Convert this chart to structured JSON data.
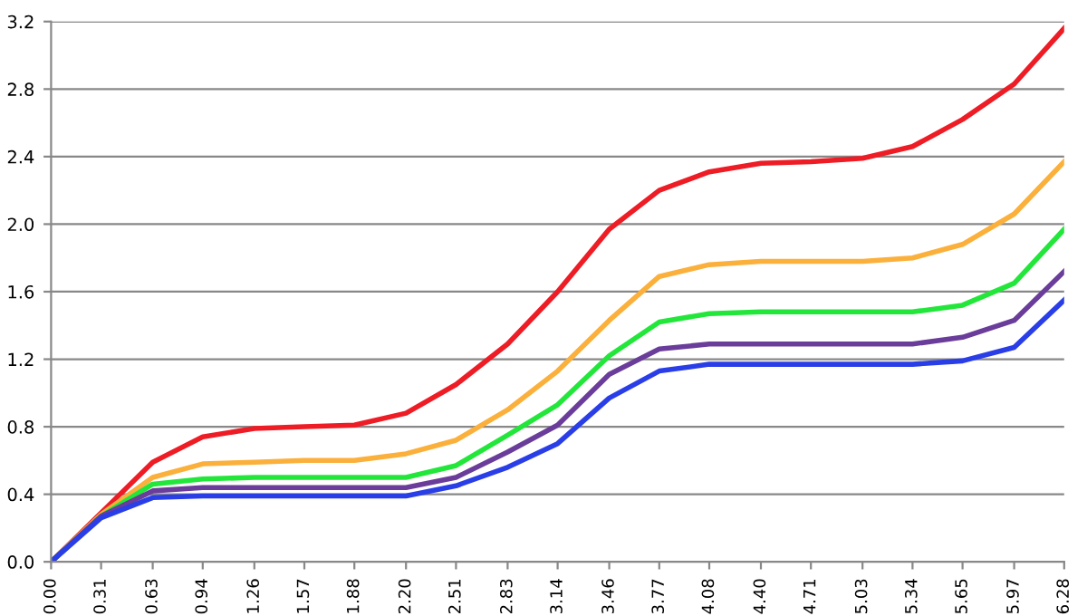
{
  "chart_data": {
    "type": "line",
    "x": [
      0,
      0.31,
      0.63,
      0.94,
      1.26,
      1.57,
      1.88,
      2.2,
      2.51,
      2.83,
      3.14,
      3.46,
      3.77,
      4.08,
      4.4,
      4.71,
      5.03,
      5.34,
      5.65,
      5.97,
      6.28
    ],
    "series": [
      {
        "color": "#ee1c25",
        "values": [
          0,
          0.29,
          0.59,
          0.74,
          0.79,
          0.8,
          0.81,
          0.88,
          1.05,
          1.29,
          1.6,
          1.97,
          2.2,
          2.31,
          2.36,
          2.37,
          2.39,
          2.46,
          2.62,
          2.83,
          3.16
        ]
      },
      {
        "color": "#fbb03b",
        "values": [
          0,
          0.28,
          0.5,
          0.58,
          0.59,
          0.6,
          0.6,
          0.64,
          0.72,
          0.9,
          1.13,
          1.43,
          1.69,
          1.76,
          1.78,
          1.78,
          1.78,
          1.8,
          1.88,
          2.06,
          2.37
        ]
      },
      {
        "color": "#22e63a",
        "values": [
          0,
          0.27,
          0.46,
          0.49,
          0.5,
          0.5,
          0.5,
          0.5,
          0.57,
          0.75,
          0.93,
          1.22,
          1.42,
          1.47,
          1.48,
          1.48,
          1.48,
          1.48,
          1.52,
          1.65,
          1.97
        ]
      },
      {
        "color": "#6a3d9a",
        "values": [
          0,
          0.27,
          0.42,
          0.44,
          0.44,
          0.44,
          0.44,
          0.44,
          0.5,
          0.65,
          0.81,
          1.11,
          1.26,
          1.29,
          1.29,
          1.29,
          1.29,
          1.29,
          1.33,
          1.43,
          1.72
        ]
      },
      {
        "color": "#2a3ee8",
        "values": [
          0,
          0.26,
          0.38,
          0.39,
          0.39,
          0.39,
          0.39,
          0.39,
          0.45,
          0.56,
          0.7,
          0.97,
          1.13,
          1.17,
          1.17,
          1.17,
          1.17,
          1.17,
          1.19,
          1.27,
          1.55
        ]
      }
    ],
    "xlim": [
      0,
      6.28
    ],
    "ylim": [
      0,
      3.2
    ],
    "xticks": [
      {
        "value": 0,
        "label": "0.00"
      },
      {
        "value": 0.31,
        "label": "0.31"
      },
      {
        "value": 0.63,
        "label": "0.63"
      },
      {
        "value": 0.94,
        "label": "0.94"
      },
      {
        "value": 1.26,
        "label": "1.26"
      },
      {
        "value": 1.57,
        "label": "1.57"
      },
      {
        "value": 1.88,
        "label": "1.88"
      },
      {
        "value": 2.2,
        "label": "2.20"
      },
      {
        "value": 2.51,
        "label": "2.51"
      },
      {
        "value": 2.83,
        "label": "2.83"
      },
      {
        "value": 3.14,
        "label": "3.14"
      },
      {
        "value": 3.46,
        "label": "3.46"
      },
      {
        "value": 3.77,
        "label": "3.77"
      },
      {
        "value": 4.08,
        "label": "4.08"
      },
      {
        "value": 4.4,
        "label": "4.40"
      },
      {
        "value": 4.71,
        "label": "4.71"
      },
      {
        "value": 5.03,
        "label": "5.03"
      },
      {
        "value": 5.34,
        "label": "5.34"
      },
      {
        "value": 5.65,
        "label": "5.65"
      },
      {
        "value": 5.97,
        "label": "5.97"
      },
      {
        "value": 6.28,
        "label": "6.28"
      }
    ],
    "yticks": [
      {
        "value": 0,
        "label": "0.0"
      },
      {
        "value": 0.4,
        "label": "0.4"
      },
      {
        "value": 0.8,
        "label": "0.8"
      },
      {
        "value": 1.2,
        "label": "1.2"
      },
      {
        "value": 1.6,
        "label": "1.6"
      },
      {
        "value": 2,
        "label": "2.0"
      },
      {
        "value": 2.4,
        "label": "2.4"
      },
      {
        "value": 2.8,
        "label": "2.8"
      },
      {
        "value": 3.2,
        "label": "3.2"
      }
    ],
    "grid": "y",
    "marker": "none",
    "line_style": "solid"
  }
}
